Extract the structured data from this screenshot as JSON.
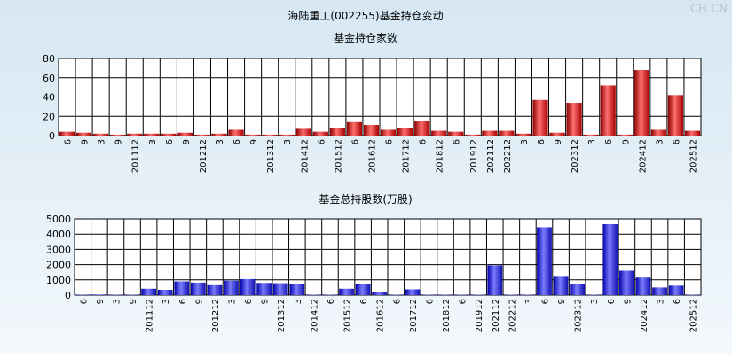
{
  "page_title": "海陆重工(002255)基金持仓变动",
  "watermark": "CFi.CN",
  "chart_data": [
    {
      "type": "bar",
      "title": "基金持仓家数",
      "ylim": [
        0,
        80
      ],
      "yticks": [
        0,
        20,
        40,
        60,
        80
      ],
      "grid": true,
      "bar_color": "red",
      "categories": [
        "6",
        "9",
        "3",
        "9",
        "201112",
        "3",
        "6",
        "9",
        "201212",
        "3",
        "6",
        "9",
        "201312",
        "3",
        "201412",
        "6",
        "201512",
        "6",
        "201612",
        "6",
        "201712",
        "6",
        "201812",
        "6",
        "201912",
        "202112",
        "202212",
        "3",
        "6",
        "9",
        "202312",
        "3",
        "6",
        "9",
        "202412",
        "3",
        "6",
        "202512"
      ],
      "values": [
        4,
        3,
        2,
        1,
        2,
        2,
        2,
        3,
        1,
        2,
        6,
        1,
        1,
        1,
        7,
        4,
        8,
        14,
        11,
        6,
        8,
        15,
        5,
        4,
        1,
        5,
        5,
        2,
        37,
        3,
        34,
        1,
        52,
        1,
        68,
        6,
        42,
        5
      ]
    },
    {
      "type": "bar",
      "title": "基金总持股数(万股)",
      "ylim": [
        0,
        5000
      ],
      "yticks": [
        0,
        1000,
        2000,
        3000,
        4000,
        5000
      ],
      "grid": true,
      "bar_color": "blue",
      "categories": [
        "6",
        "9",
        "3",
        "9",
        "201112",
        "3",
        "6",
        "9",
        "201212",
        "3",
        "6",
        "9",
        "201312",
        "3",
        "201412",
        "6",
        "201512",
        "6",
        "201612",
        "6",
        "201712",
        "6",
        "201812",
        "6",
        "201912",
        "202112",
        "202212",
        "3",
        "6",
        "9",
        "202312",
        "3",
        "6",
        "9",
        "202412",
        "3",
        "6",
        "202512"
      ],
      "values": [
        30,
        40,
        20,
        10,
        420,
        350,
        900,
        820,
        650,
        950,
        1050,
        800,
        780,
        750,
        20,
        10,
        420,
        750,
        230,
        20,
        380,
        30,
        20,
        10,
        20,
        1950,
        10,
        20,
        4450,
        1200,
        700,
        30,
        4650,
        1600,
        1150,
        500,
        620,
        20
      ]
    }
  ]
}
